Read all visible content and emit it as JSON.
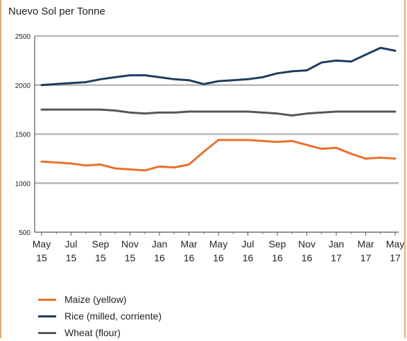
{
  "chart_data": {
    "type": "line",
    "title": "Nuevo Sol per Tonne",
    "xlabel": "",
    "ylabel": "",
    "ylim": [
      500,
      2500
    ],
    "yticks": [
      500,
      1000,
      1500,
      2000,
      2500
    ],
    "grid": true,
    "legend_position": "bottom-left",
    "x_tick_labels": [
      [
        "May",
        "15"
      ],
      [
        "Jul",
        "15"
      ],
      [
        "Sep",
        "15"
      ],
      [
        "Nov",
        "15"
      ],
      [
        "Jan",
        "16"
      ],
      [
        "Mar",
        "16"
      ],
      [
        "May",
        "16"
      ],
      [
        "Jul",
        "16"
      ],
      [
        "Sep",
        "16"
      ],
      [
        "Nov",
        "16"
      ],
      [
        "Jan",
        "17"
      ],
      [
        "Mar",
        "17"
      ],
      [
        "May",
        "17"
      ]
    ],
    "x": [
      "2015-05",
      "2015-06",
      "2015-07",
      "2015-08",
      "2015-09",
      "2015-10",
      "2015-11",
      "2015-12",
      "2016-01",
      "2016-02",
      "2016-03",
      "2016-04",
      "2016-05",
      "2016-06",
      "2016-07",
      "2016-08",
      "2016-09",
      "2016-10",
      "2016-11",
      "2016-12",
      "2017-01",
      "2017-02",
      "2017-03",
      "2017-04",
      "2017-05"
    ],
    "series": [
      {
        "name": "Maize (yellow)",
        "color": "#e8702a",
        "values": [
          1220,
          1210,
          1200,
          1180,
          1190,
          1150,
          1140,
          1130,
          1170,
          1160,
          1190,
          1320,
          1440,
          1440,
          1440,
          1430,
          1420,
          1430,
          1390,
          1350,
          1360,
          1300,
          1250,
          1260,
          1250
        ]
      },
      {
        "name": "Rice (milled, corriente)",
        "color": "#1f3a5f",
        "values": [
          2000,
          2010,
          2020,
          2030,
          2060,
          2080,
          2100,
          2100,
          2080,
          2060,
          2050,
          2010,
          2040,
          2050,
          2060,
          2080,
          2120,
          2140,
          2150,
          2230,
          2250,
          2240,
          2310,
          2380,
          2350
        ]
      },
      {
        "name": "Wheat (flour)",
        "color": "#555555",
        "values": [
          1750,
          1750,
          1750,
          1750,
          1750,
          1740,
          1720,
          1710,
          1720,
          1720,
          1730,
          1730,
          1730,
          1730,
          1730,
          1720,
          1710,
          1690,
          1710,
          1720,
          1730,
          1730,
          1730,
          1730,
          1730
        ]
      }
    ]
  }
}
